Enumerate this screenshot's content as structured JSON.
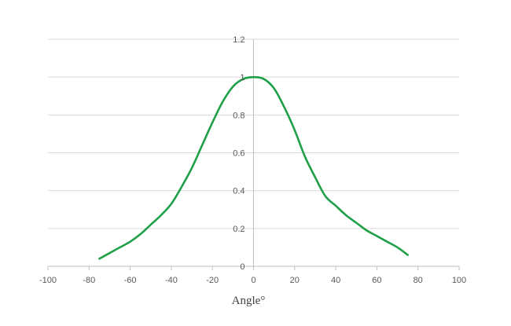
{
  "chart_data": {
    "type": "line",
    "title": "",
    "xlabel": "Angle°",
    "ylabel": "",
    "xlim": [
      -100,
      100
    ],
    "ylim": [
      0,
      1.2
    ],
    "x_ticks": [
      -100,
      -80,
      -60,
      -40,
      -20,
      0,
      20,
      40,
      60,
      80,
      100
    ],
    "y_ticks": [
      0,
      0.2,
      0.4,
      0.6,
      0.8,
      1,
      1.2
    ],
    "grid": "horizontal",
    "legend": "none",
    "series": [
      {
        "color": "#1fa048",
        "x": [
          -75,
          -70,
          -65,
          -60,
          -55,
          -50,
          -45,
          -40,
          -35,
          -30,
          -25,
          -20,
          -15,
          -10,
          -5,
          0,
          5,
          10,
          15,
          20,
          25,
          30,
          35,
          40,
          45,
          50,
          55,
          60,
          65,
          70,
          75
        ],
        "y": [
          0.04,
          0.07,
          0.1,
          0.13,
          0.17,
          0.22,
          0.27,
          0.33,
          0.42,
          0.52,
          0.64,
          0.76,
          0.87,
          0.95,
          0.99,
          1.0,
          0.99,
          0.94,
          0.84,
          0.72,
          0.58,
          0.47,
          0.37,
          0.32,
          0.27,
          0.23,
          0.19,
          0.16,
          0.13,
          0.1,
          0.06
        ]
      }
    ]
  }
}
